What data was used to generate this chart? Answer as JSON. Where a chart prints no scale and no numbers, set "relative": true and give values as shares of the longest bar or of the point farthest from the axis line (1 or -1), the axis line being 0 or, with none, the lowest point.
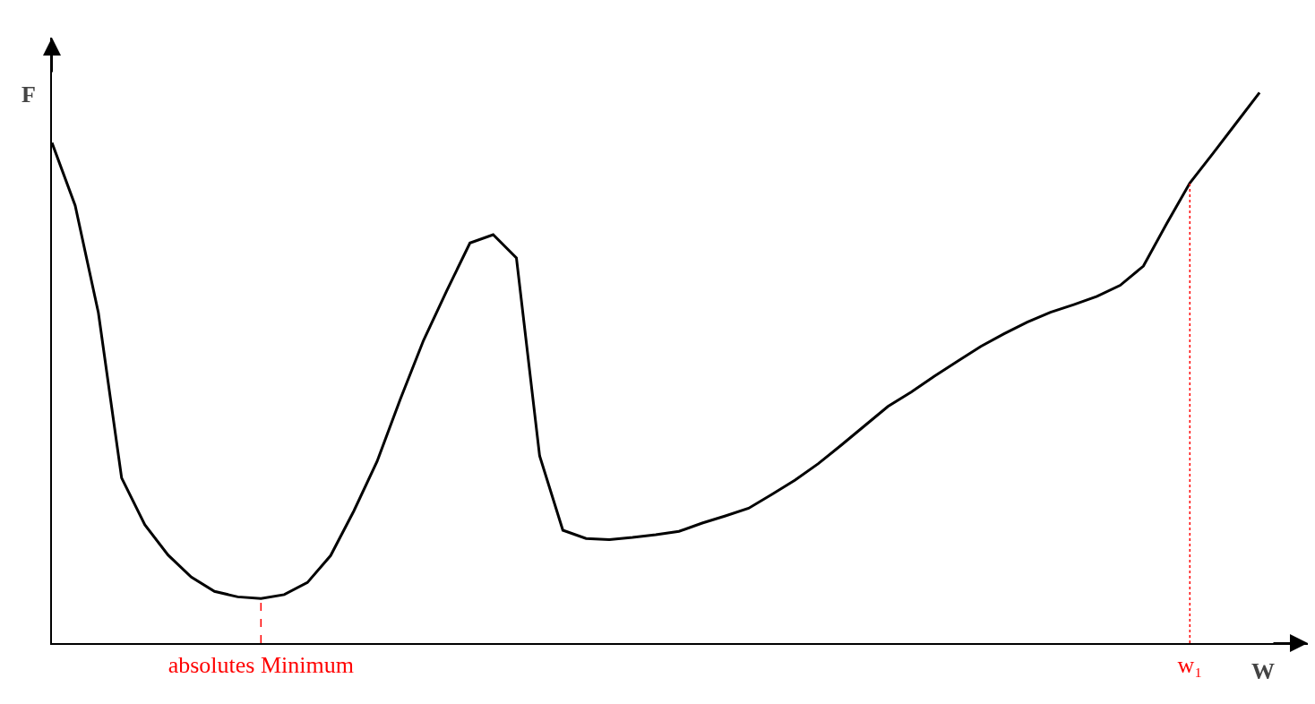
{
  "chart_data": {
    "type": "line",
    "relative": true,
    "xlabel": "W",
    "ylabel": "F",
    "marker": "none",
    "line_style": "solid",
    "grid": false,
    "categories": [
      null,
      null,
      null,
      null,
      null,
      null,
      null,
      null,
      null,
      "absolutes Minimum",
      null,
      null,
      null,
      null,
      null,
      null,
      null,
      null,
      null,
      null,
      null,
      null,
      null,
      null,
      null,
      null,
      null,
      null,
      null,
      null,
      null,
      null,
      null,
      null,
      null,
      null,
      null,
      null,
      null,
      null,
      null,
      null,
      null,
      null,
      null,
      null,
      null,
      null,
      null,
      "w₁",
      null,
      null,
      null
    ],
    "series": [
      {
        "color": "#000000",
        "values": [
          0.909,
          0.795,
          0.6,
          0.3,
          0.215,
          0.16,
          0.12,
          0.094,
          0.084,
          0.081,
          0.088,
          0.11,
          0.159,
          0.24,
          0.33,
          0.443,
          0.55,
          0.64,
          0.727,
          0.742,
          0.7,
          0.34,
          0.205,
          0.19,
          0.188,
          0.192,
          0.197,
          0.203,
          0.218,
          0.231,
          0.245,
          0.27,
          0.296,
          0.326,
          0.36,
          0.395,
          0.43,
          0.456,
          0.485,
          0.512,
          0.539,
          0.562,
          0.583,
          0.601,
          0.615,
          0.63,
          0.65,
          0.685,
          0.762,
          0.836,
          0.89,
          0.945,
          1.0
        ]
      }
    ],
    "ref_lines": [
      {
        "axis": "x",
        "value": "absolutes Minimum",
        "color": "#ff0000",
        "line_style": "dashed"
      },
      {
        "axis": "x",
        "value": "w₁",
        "color": "#ff0000",
        "line_style": "dotted"
      }
    ]
  }
}
